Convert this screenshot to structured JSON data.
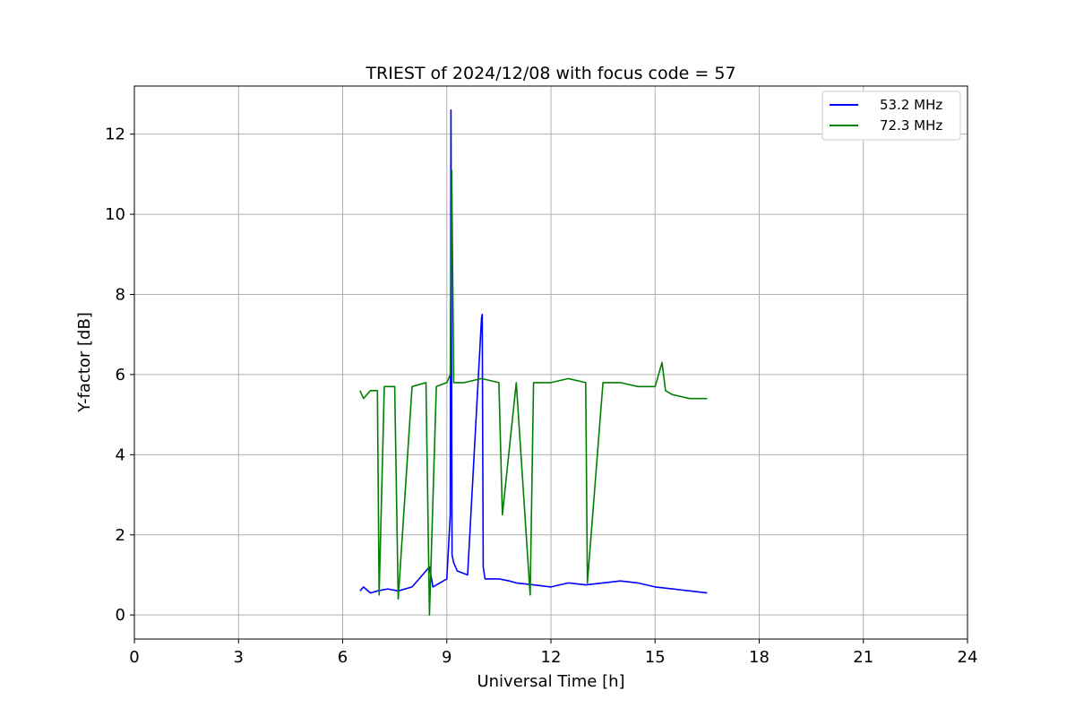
{
  "chart_data": {
    "type": "line",
    "title": "TRIEST of 2024/12/08 with focus code = 57",
    "xlabel": "Universal Time [h]",
    "ylabel": "Y-factor [dB]",
    "xlim": [
      0,
      24
    ],
    "ylim": [
      -0.6,
      13.2
    ],
    "xticks": [
      0,
      3,
      6,
      9,
      12,
      15,
      18,
      21,
      24
    ],
    "yticks": [
      0,
      2,
      4,
      6,
      8,
      10,
      12
    ],
    "grid": true,
    "legend_position": "top-right",
    "series": [
      {
        "name": "53.2 MHz",
        "color": "#0000ff",
        "x": [
          6.5,
          6.6,
          6.8,
          7.0,
          7.3,
          7.6,
          8.0,
          8.5,
          8.6,
          8.8,
          9.0,
          9.1,
          9.12,
          9.15,
          9.2,
          9.3,
          9.6,
          10.0,
          10.02,
          10.05,
          10.1,
          10.5,
          10.8,
          11.0,
          11.5,
          12.0,
          12.5,
          13.0,
          13.5,
          14.0,
          14.5,
          15.0,
          15.5,
          16.0,
          16.5
        ],
        "y": [
          0.6,
          0.7,
          0.55,
          0.6,
          0.65,
          0.6,
          0.7,
          1.2,
          0.7,
          0.8,
          0.9,
          2.5,
          12.6,
          1.5,
          1.3,
          1.1,
          1.0,
          7.4,
          7.5,
          1.2,
          0.9,
          0.9,
          0.85,
          0.8,
          0.75,
          0.7,
          0.8,
          0.75,
          0.8,
          0.85,
          0.8,
          0.7,
          0.65,
          0.6,
          0.55
        ]
      },
      {
        "name": "72.3 MHz",
        "color": "#008000",
        "x": [
          6.5,
          6.6,
          6.8,
          7.0,
          7.05,
          7.2,
          7.5,
          7.6,
          8.0,
          8.4,
          8.5,
          8.7,
          9.0,
          9.1,
          9.14,
          9.2,
          9.5,
          10.0,
          10.5,
          10.6,
          11.0,
          11.4,
          11.5,
          12.0,
          12.5,
          13.0,
          13.05,
          13.5,
          14.0,
          14.5,
          15.0,
          15.2,
          15.3,
          15.5,
          16.0,
          16.5
        ],
        "y": [
          5.6,
          5.4,
          5.6,
          5.6,
          0.5,
          5.7,
          5.7,
          0.4,
          5.7,
          5.8,
          0.0,
          5.7,
          5.8,
          6.0,
          11.1,
          5.8,
          5.8,
          5.9,
          5.8,
          2.5,
          5.8,
          0.5,
          5.8,
          5.8,
          5.9,
          5.8,
          0.8,
          5.8,
          5.8,
          5.7,
          5.7,
          6.3,
          5.6,
          5.5,
          5.4,
          5.4
        ]
      }
    ]
  }
}
